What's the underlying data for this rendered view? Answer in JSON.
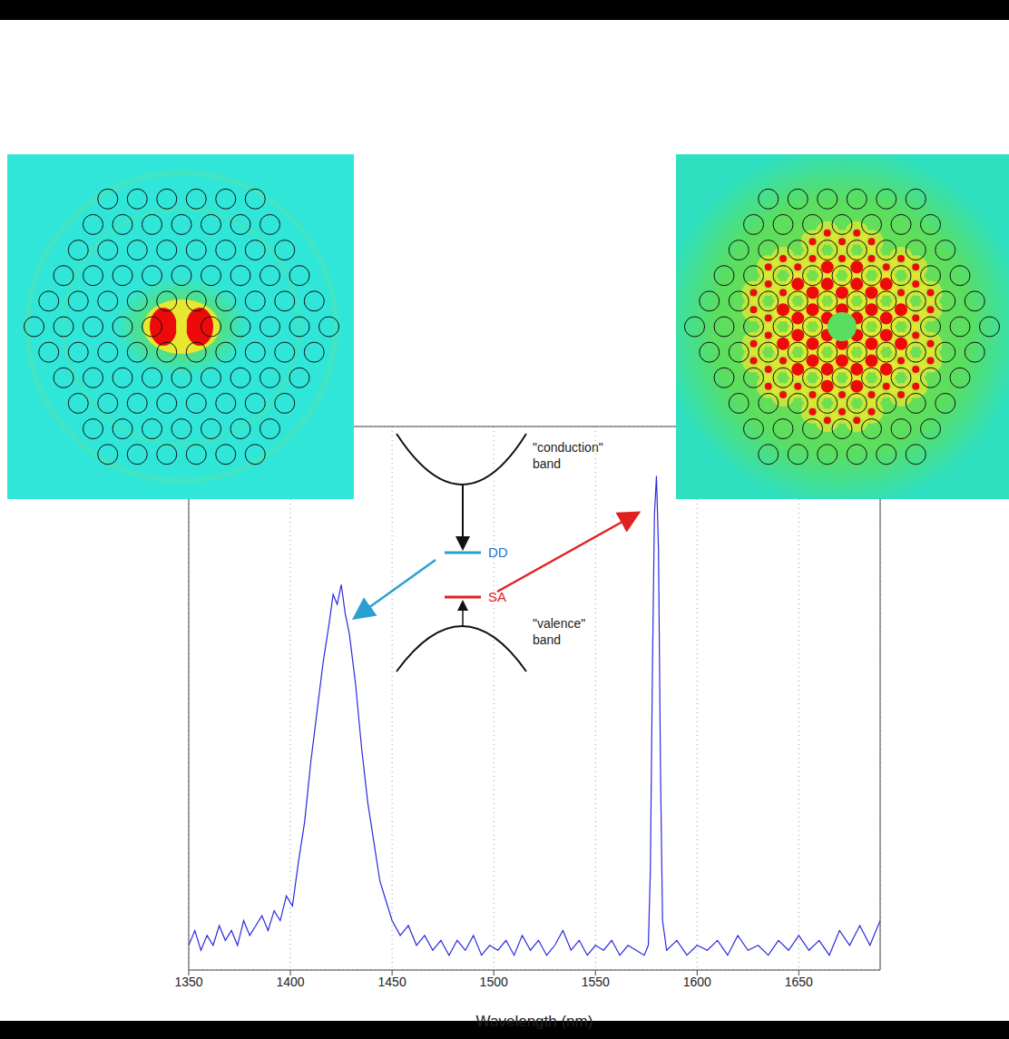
{
  "chart_data": {
    "type": "line",
    "x_label": "Wavelength (nm)",
    "xlim": [
      1350,
      1690
    ],
    "xticks": [
      1350,
      1400,
      1450,
      1500,
      1550,
      1600,
      1650
    ],
    "ylim": [
      0,
      1.1
    ],
    "yticks": [
      0,
      0.2,
      0.4,
      0.6,
      0.8,
      1.0
    ],
    "grid": true,
    "tick_labels": "x",
    "color": "#2a2ae0",
    "annotations": [
      "\"conduction\" band",
      "DD",
      "SA",
      "\"valence\" band"
    ],
    "x": [
      1350,
      1353,
      1356,
      1359,
      1362,
      1365,
      1368,
      1371,
      1374,
      1377,
      1380,
      1383,
      1386,
      1389,
      1392,
      1395,
      1398,
      1401,
      1404,
      1407,
      1410,
      1413,
      1416,
      1419,
      1421,
      1423,
      1425,
      1427,
      1429,
      1432,
      1435,
      1438,
      1441,
      1444,
      1447,
      1450,
      1454,
      1458,
      1462,
      1466,
      1470,
      1474,
      1478,
      1482,
      1486,
      1490,
      1494,
      1498,
      1502,
      1506,
      1510,
      1514,
      1518,
      1522,
      1526,
      1530,
      1534,
      1538,
      1542,
      1546,
      1550,
      1554,
      1558,
      1562,
      1566,
      1570,
      1574,
      1576,
      1577,
      1578,
      1579,
      1580,
      1581,
      1582,
      1583,
      1585,
      1590,
      1595,
      1600,
      1605,
      1610,
      1615,
      1620,
      1625,
      1630,
      1635,
      1640,
      1645,
      1650,
      1655,
      1660,
      1665,
      1670,
      1675,
      1680,
      1685,
      1690
    ],
    "values": [
      0.05,
      0.08,
      0.04,
      0.07,
      0.05,
      0.09,
      0.06,
      0.08,
      0.05,
      0.1,
      0.07,
      0.09,
      0.11,
      0.08,
      0.12,
      0.1,
      0.15,
      0.13,
      0.22,
      0.3,
      0.42,
      0.52,
      0.62,
      0.7,
      0.76,
      0.74,
      0.78,
      0.72,
      0.68,
      0.58,
      0.45,
      0.34,
      0.26,
      0.18,
      0.14,
      0.1,
      0.07,
      0.09,
      0.05,
      0.07,
      0.04,
      0.06,
      0.03,
      0.06,
      0.04,
      0.07,
      0.03,
      0.05,
      0.04,
      0.06,
      0.03,
      0.07,
      0.04,
      0.06,
      0.03,
      0.05,
      0.08,
      0.04,
      0.06,
      0.03,
      0.05,
      0.04,
      0.06,
      0.03,
      0.05,
      0.04,
      0.03,
      0.05,
      0.2,
      0.6,
      0.92,
      1.0,
      0.85,
      0.4,
      0.1,
      0.04,
      0.06,
      0.03,
      0.05,
      0.04,
      0.06,
      0.03,
      0.07,
      0.04,
      0.05,
      0.03,
      0.06,
      0.04,
      0.07,
      0.04,
      0.06,
      0.03,
      0.08,
      0.05,
      0.09,
      0.05,
      0.1
    ]
  }
}
